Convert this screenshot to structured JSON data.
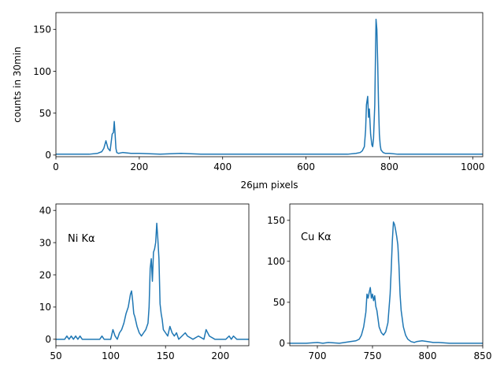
{
  "chart_data": [
    {
      "type": "line",
      "id": "full",
      "xlabel": "26μm pixels",
      "ylabel": "counts in 30min",
      "xlim": [
        0,
        1024
      ],
      "ylim": [
        -2,
        170
      ],
      "xticks": [
        0,
        200,
        400,
        600,
        800,
        1000
      ],
      "yticks": [
        0,
        50,
        100,
        150
      ],
      "annotation": "",
      "color": "#1f77b4",
      "x": [
        0,
        40,
        80,
        100,
        110,
        115,
        120,
        125,
        130,
        135,
        138,
        140,
        142,
        144,
        146,
        150,
        160,
        180,
        200,
        250,
        300,
        350,
        400,
        450,
        500,
        550,
        600,
        650,
        700,
        720,
        730,
        735,
        740,
        743,
        745,
        748,
        750,
        752,
        755,
        758,
        760,
        762,
        765,
        767,
        768,
        770,
        772,
        774,
        776,
        778,
        780,
        785,
        790,
        800,
        820,
        850,
        900,
        950,
        1000,
        1024
      ],
      "y": [
        1,
        1,
        1,
        2,
        4,
        8,
        17,
        8,
        5,
        25,
        27,
        40,
        25,
        8,
        3,
        2,
        3,
        2,
        2,
        1,
        2,
        1,
        1,
        1,
        1,
        1,
        1,
        1,
        1,
        2,
        3,
        5,
        10,
        30,
        60,
        70,
        45,
        55,
        25,
        12,
        10,
        20,
        60,
        130,
        162,
        150,
        110,
        60,
        25,
        12,
        6,
        3,
        2,
        2,
        1,
        1,
        1,
        1,
        1,
        1
      ]
    },
    {
      "type": "line",
      "id": "ni",
      "xlabel": "",
      "ylabel": "",
      "xlim": [
        50,
        226
      ],
      "ylim": [
        -2,
        42
      ],
      "xticks": [
        50,
        100,
        150,
        200
      ],
      "yticks": [
        0,
        10,
        20,
        30,
        40
      ],
      "annotation": "Ni Kα",
      "color": "#1f77b4",
      "x": [
        50,
        58,
        60,
        62,
        64,
        66,
        68,
        70,
        72,
        74,
        80,
        90,
        92,
        94,
        100,
        102,
        104,
        106,
        108,
        110,
        112,
        114,
        116,
        118,
        119,
        120,
        121,
        122,
        124,
        126,
        128,
        130,
        132,
        134,
        135,
        136,
        137,
        138,
        139,
        140,
        141,
        142,
        143,
        144,
        145,
        146,
        147,
        148,
        150,
        152,
        154,
        156,
        158,
        160,
        162,
        165,
        168,
        170,
        175,
        180,
        185,
        187,
        190,
        195,
        200,
        205,
        208,
        210,
        212,
        215,
        220,
        226
      ],
      "y": [
        0,
        0,
        1,
        0,
        1,
        0,
        1,
        0,
        1,
        0,
        0,
        0,
        1,
        0,
        0,
        3,
        1,
        0,
        2,
        3,
        5,
        8,
        10,
        14,
        15,
        12,
        8,
        7,
        4,
        2,
        1,
        2,
        3,
        5,
        10,
        22,
        25,
        18,
        27,
        28,
        30,
        36,
        31,
        25,
        11,
        8,
        6,
        3,
        2,
        1,
        4,
        2,
        1,
        2,
        0,
        1,
        2,
        1,
        0,
        1,
        0,
        3,
        1,
        0,
        0,
        0,
        1,
        0,
        1,
        0,
        0,
        0
      ]
    },
    {
      "type": "line",
      "id": "cu",
      "xlabel": "",
      "ylabel": "",
      "xlim": [
        675,
        850
      ],
      "ylim": [
        -3,
        170
      ],
      "xticks": [
        700,
        750,
        800,
        850
      ],
      "yticks": [
        0,
        50,
        100,
        150
      ],
      "annotation": "Cu Kα",
      "color": "#1f77b4",
      "x": [
        675,
        690,
        700,
        705,
        710,
        720,
        730,
        735,
        738,
        740,
        742,
        744,
        745,
        746,
        747,
        748,
        749,
        750,
        751,
        752,
        753,
        754,
        755,
        756,
        758,
        760,
        762,
        764,
        766,
        767,
        768,
        769,
        770,
        771,
        772,
        773,
        774,
        775,
        776,
        778,
        780,
        782,
        785,
        788,
        790,
        795,
        800,
        805,
        810,
        820,
        830,
        840,
        850
      ],
      "y": [
        0,
        0,
        1,
        0,
        1,
        0,
        2,
        3,
        5,
        10,
        20,
        38,
        60,
        55,
        62,
        68,
        55,
        60,
        52,
        58,
        45,
        40,
        30,
        20,
        13,
        10,
        14,
        25,
        60,
        90,
        125,
        148,
        145,
        138,
        130,
        120,
        95,
        60,
        40,
        20,
        10,
        5,
        2,
        1,
        2,
        3,
        2,
        1,
        1,
        0,
        0,
        0,
        0
      ]
    }
  ]
}
